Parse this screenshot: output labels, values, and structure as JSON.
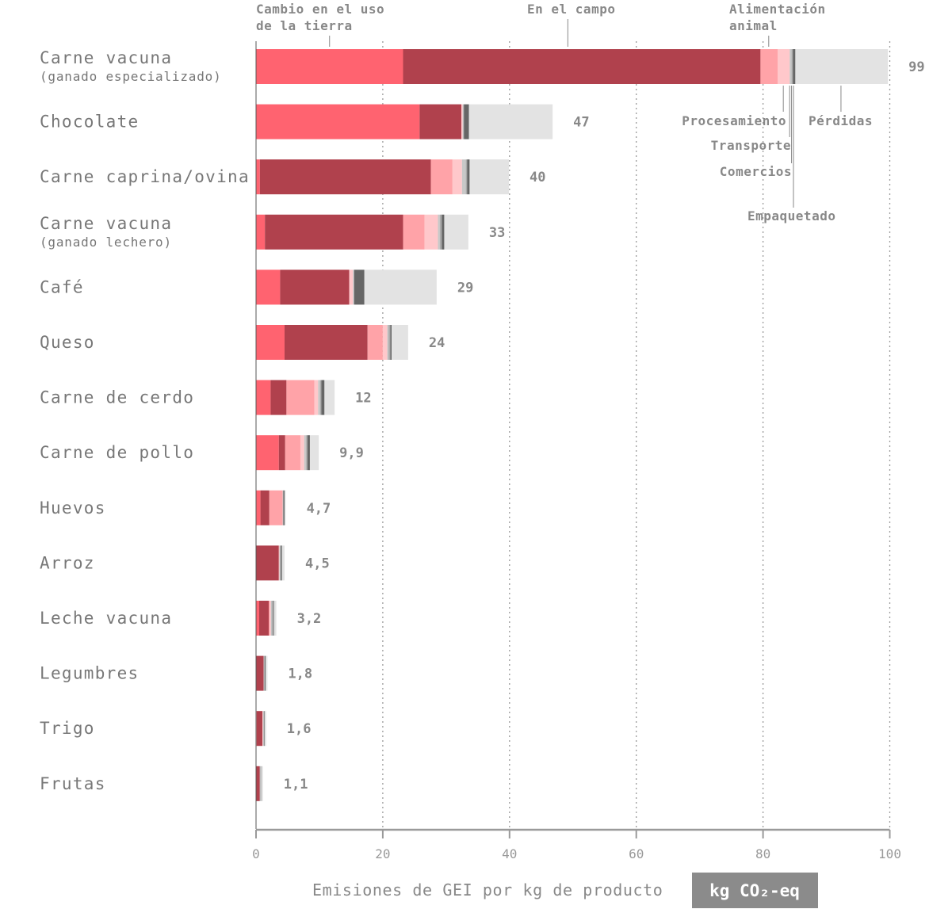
{
  "chart_data": {
    "type": "bar",
    "orientation": "horizontal",
    "stacked": true,
    "xlabel": "Emisiones de GEI por kg de producto",
    "unit": "kg CO₂-eq",
    "xlim": [
      0,
      100
    ],
    "xticks": [
      0,
      20,
      40,
      60,
      80,
      100
    ],
    "grid": "vertical-dotted",
    "stages": [
      {
        "name": "Cambio en el uso de la tierra",
        "color": "#ff6370"
      },
      {
        "name": "En el campo",
        "color": "#b0414d"
      },
      {
        "name": "Alimentación animal",
        "color": "#ffa3a8"
      },
      {
        "name": "Procesamiento",
        "color": "#ffc8cb"
      },
      {
        "name": "Transporte",
        "color": "#c8c8c8"
      },
      {
        "name": "Comercios",
        "color": "#aaaaaa"
      },
      {
        "name": "Empaquetado",
        "color": "#666666"
      },
      {
        "name": "Pérdidas",
        "color": "#e3e3e3"
      }
    ],
    "categories": [
      {
        "name": "Carne vacuna",
        "subtitle": "(ganado especializado)",
        "total_label": "99",
        "values": [
          23.2,
          56.4,
          2.7,
          1.9,
          0.3,
          0.2,
          0.4,
          14.6
        ]
      },
      {
        "name": "Chocolate",
        "total_label": "47",
        "values": [
          25.8,
          6.6,
          0,
          0.2,
          0.1,
          0.1,
          0.8,
          13.2
        ]
      },
      {
        "name": "Carne caprina/ovina",
        "total_label": "40",
        "values": [
          0.6,
          27.0,
          3.4,
          1.5,
          0.6,
          0.2,
          0.4,
          6.2
        ]
      },
      {
        "name": "Carne vacuna",
        "subtitle": "(ganado lechero)",
        "total_label": "33",
        "values": [
          1.4,
          21.8,
          3.4,
          2.1,
          0.3,
          0.3,
          0.4,
          3.8
        ]
      },
      {
        "name": "Café",
        "total_label": "29",
        "values": [
          3.8,
          10.9,
          0,
          0.6,
          0.1,
          0.1,
          1.6,
          11.4
        ]
      },
      {
        "name": "Queso",
        "total_label": "24",
        "values": [
          4.5,
          13.1,
          2.4,
          0.7,
          0.2,
          0.3,
          0.2,
          2.6
        ]
      },
      {
        "name": "Carne de cerdo",
        "total_label": "12",
        "values": [
          2.3,
          2.5,
          4.4,
          0.6,
          0.3,
          0.2,
          0.5,
          1.6
        ]
      },
      {
        "name": "Carne de pollo",
        "total_label": "9,9",
        "values": [
          3.6,
          1.0,
          2.4,
          0.6,
          0.3,
          0.2,
          0.4,
          1.4
        ]
      },
      {
        "name": "Huevos",
        "total_label": "4,7",
        "values": [
          0.7,
          1.4,
          2.1,
          0,
          0.1,
          0,
          0.2,
          0.2
        ]
      },
      {
        "name": "Arroz",
        "total_label": "4,5",
        "values": [
          0,
          3.6,
          0,
          0.1,
          0.1,
          0.1,
          0.2,
          0.4
        ]
      },
      {
        "name": "Leche vacuna",
        "total_label": "3,2",
        "values": [
          0.5,
          1.5,
          0.2,
          0.15,
          0.1,
          0.3,
          0.1,
          0.35
        ]
      },
      {
        "name": "Legumbres",
        "total_label": "1,8",
        "values": [
          0,
          1.2,
          0,
          0,
          0.1,
          0.05,
          0.15,
          0.3
        ]
      },
      {
        "name": "Trigo",
        "total_label": "1,6",
        "values": [
          0.1,
          0.9,
          0,
          0.1,
          0.1,
          0.05,
          0.1,
          0.25
        ]
      },
      {
        "name": "Frutas",
        "total_label": "1,1",
        "values": [
          0,
          0.6,
          0,
          0,
          0.1,
          0.05,
          0.05,
          0.3
        ]
      }
    ],
    "annotations": {
      "top": [
        {
          "lines": [
            "Cambio en el uso",
            "de la tierra"
          ],
          "target": 11.6
        },
        {
          "lines": [
            "En el campo"
          ],
          "target": 49.2
        },
        {
          "lines": [
            "Alimentación",
            "animal"
          ],
          "target": 80.9
        }
      ],
      "bottom": [
        {
          "label": "Procesamiento",
          "target": 83.2
        },
        {
          "label": "Transporte",
          "target": 84.2
        },
        {
          "label": "Comercios",
          "target": 84.5
        },
        {
          "label": "Empaquetado",
          "target": 84.8
        },
        {
          "label": "Pérdidas",
          "target": 92.3
        }
      ]
    }
  }
}
